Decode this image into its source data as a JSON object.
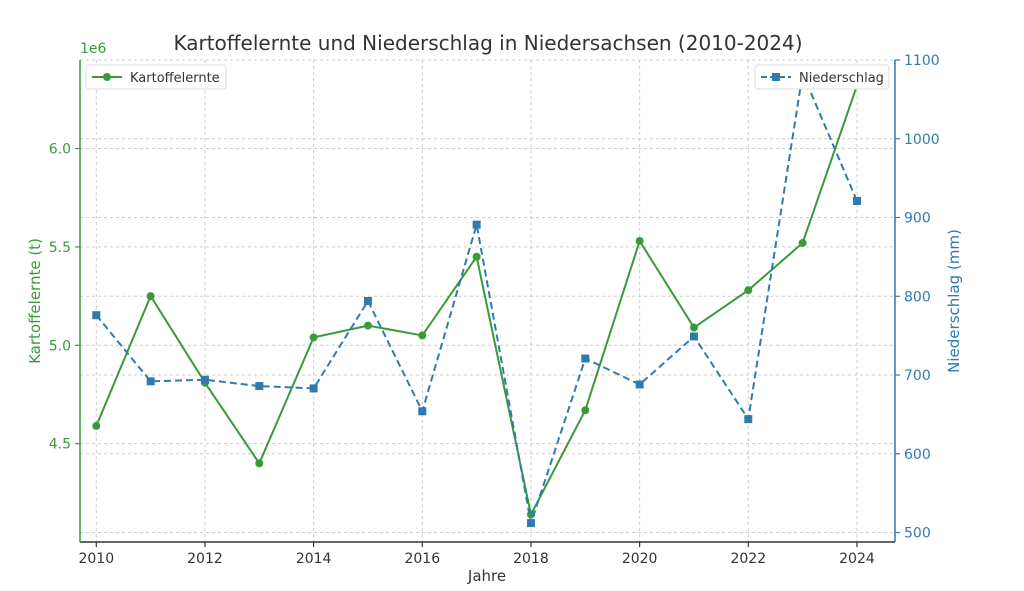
{
  "chart_data": {
    "type": "line",
    "title": "Kartoffelernte und Niederschlag in Niedersachsen (2010-2024)",
    "xlabel": "Jahre",
    "x": [
      2010,
      2011,
      2012,
      2013,
      2014,
      2015,
      2016,
      2017,
      2018,
      2019,
      2020,
      2021,
      2022,
      2023,
      2024
    ],
    "x_ticks": [
      "2010",
      "2012",
      "2014",
      "2016",
      "2018",
      "2020",
      "2022",
      "2024"
    ],
    "xlim": [
      2009.7,
      2024.7
    ],
    "grid": true,
    "left_axis": {
      "label": "Kartoffelernte (t)",
      "exponent_label": "1e6",
      "ylim": [
        4.0,
        6.45
      ],
      "ticks": [
        4.5,
        5.0,
        5.5,
        6.0
      ],
      "tick_labels": [
        "4.5",
        "5.0",
        "5.5",
        "6.0"
      ],
      "color": "#3a9a3a"
    },
    "right_axis": {
      "label": "Niederschlag (mm)",
      "ylim": [
        488,
        1100
      ],
      "ticks": [
        500,
        600,
        700,
        800,
        900,
        1000,
        1100
      ],
      "tick_labels": [
        "500",
        "600",
        "700",
        "800",
        "900",
        "1000",
        "1100"
      ],
      "color": "#2f7bb0"
    },
    "series": [
      {
        "name": "Kartoffelernte",
        "axis": "left",
        "color": "#3a9a3a",
        "marker": "circle",
        "line_style": "solid",
        "values": [
          4.59,
          5.25,
          4.81,
          4.4,
          5.04,
          5.1,
          5.05,
          5.45,
          4.14,
          4.67,
          5.53,
          5.09,
          5.28,
          5.52,
          6.32
        ],
        "legend_position": "top-left"
      },
      {
        "name": "Niederschlag",
        "axis": "right",
        "color": "#2f7bb0",
        "marker": "square",
        "line_style": "dashed",
        "values": [
          776,
          692,
          694,
          686,
          683,
          794,
          654,
          891,
          512,
          721,
          688,
          749,
          644,
          1083,
          921
        ],
        "legend_position": "top-right"
      }
    ]
  }
}
